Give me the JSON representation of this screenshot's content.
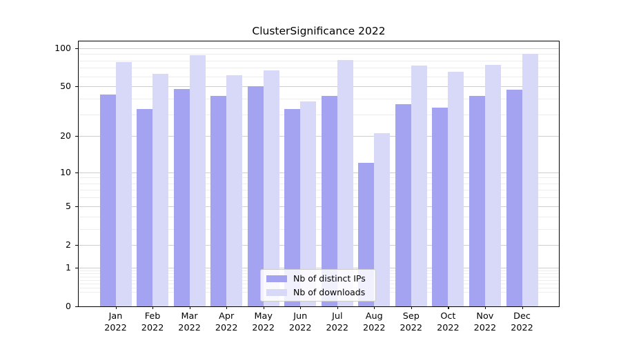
{
  "chart_data": {
    "type": "bar",
    "title": "ClusterSignificance 2022",
    "categories": [
      "Jan",
      "Feb",
      "Mar",
      "Apr",
      "May",
      "Jun",
      "Jul",
      "Aug",
      "Sep",
      "Oct",
      "Nov",
      "Dec"
    ],
    "category_year": "2022",
    "series": [
      {
        "name": "Nb of distinct IPs",
        "color": "#a3a3f2",
        "values": [
          43,
          33,
          48,
          42,
          50,
          33,
          42,
          12,
          36,
          34,
          42,
          47
        ]
      },
      {
        "name": "Nb of downloads",
        "color": "#d8d8f8",
        "values": [
          78,
          63,
          88,
          61,
          67,
          38,
          81,
          21,
          73,
          65,
          74,
          90
        ]
      }
    ],
    "y_axis": {
      "scale": "log1p",
      "ticks": [
        0,
        1,
        2,
        5,
        10,
        20,
        50,
        100
      ],
      "minor_gridlines": [
        0.3,
        0.4,
        0.5,
        0.6,
        0.7,
        0.8,
        0.9,
        3,
        4,
        6,
        7,
        8,
        9,
        30,
        40,
        60,
        70,
        80,
        90
      ],
      "top_value": 113,
      "ylim": [
        0,
        113
      ]
    },
    "xlabel": "",
    "ylabel": "",
    "grid": true,
    "legend_position": "lower center"
  },
  "colors": {
    "major_grid": "#cdcdcd",
    "minor_grid": "#ededed",
    "spine": "#000000",
    "background": "#ffffff"
  }
}
